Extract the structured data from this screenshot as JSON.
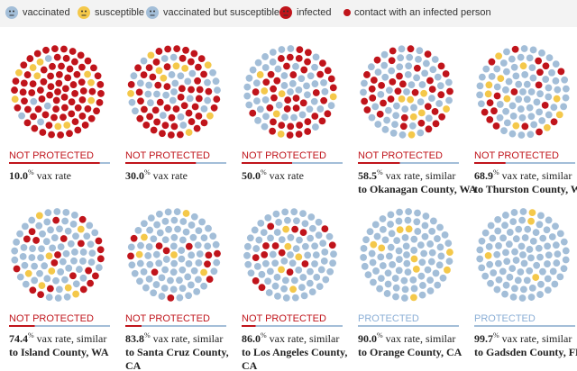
{
  "legend": [
    "vaccinated",
    "susceptible",
    "vaccinated but susceptible",
    "infected",
    "contact with an infected person"
  ],
  "panels": [
    {
      "status": "NOT PROTECTED",
      "protected": false,
      "rate": "10.0",
      "unit": "%",
      "lines": [
        "vax rate"
      ]
    },
    {
      "status": "NOT PROTECTED",
      "protected": false,
      "rate": "30.0",
      "unit": "%",
      "lines": [
        "vax rate"
      ]
    },
    {
      "status": "NOT PROTECTED",
      "protected": false,
      "rate": "50.0",
      "unit": "%",
      "lines": [
        "vax rate"
      ]
    },
    {
      "status": "NOT PROTECTED",
      "protected": false,
      "rate": "58.5",
      "unit": "%",
      "lines": [
        "vax rate, similar",
        "to Okanagan County, WA"
      ]
    },
    {
      "status": "NOT PROTECTED",
      "protected": false,
      "rate": "68.9",
      "unit": "%",
      "lines": [
        "vax rate, similar",
        "to Thurston County, WA"
      ]
    },
    {
      "status": "NOT PROTECTED",
      "protected": false,
      "rate": "74.4",
      "unit": "%",
      "lines": [
        "vax rate, similar",
        "to Island County, WA"
      ]
    },
    {
      "status": "NOT PROTECTED",
      "protected": false,
      "rate": "83.8",
      "unit": "%",
      "lines": [
        "vax rate, similar",
        "to Santa Cruz County,",
        "CA"
      ]
    },
    {
      "status": "NOT PROTECTED",
      "protected": false,
      "rate": "86.0",
      "unit": "%",
      "lines": [
        "vax rate, similar",
        "to Los Angeles County,",
        "CA"
      ]
    },
    {
      "status": "PROTECTED",
      "protected": true,
      "rate": "90.0",
      "unit": "%",
      "lines": [
        "vax rate, similar",
        "to Orange County, CA"
      ]
    },
    {
      "status": "PROTECTED",
      "protected": true,
      "rate": "99.7",
      "unit": "%",
      "lines": [
        "vax rate, similar",
        "to Gadsden County, FL"
      ]
    }
  ]
}
